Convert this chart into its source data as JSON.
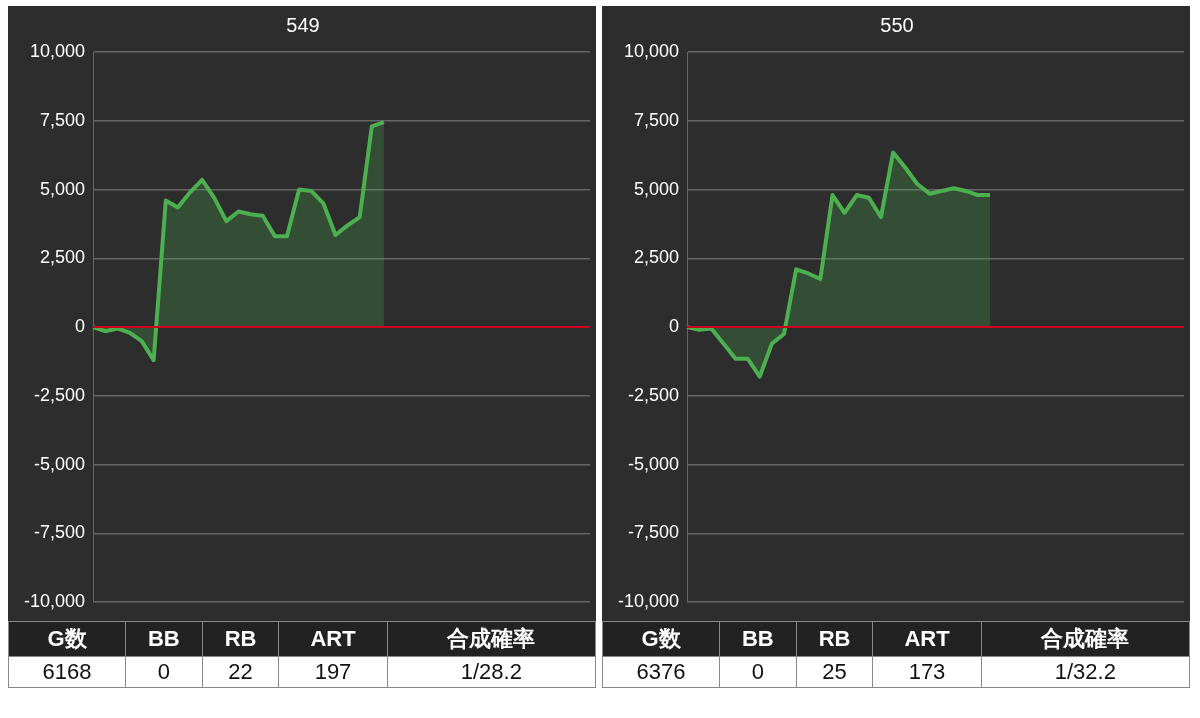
{
  "chart_data": [
    {
      "type": "area",
      "title": "549",
      "categories": [
        null,
        null,
        null,
        null,
        null,
        null,
        null,
        null,
        null,
        null,
        null,
        null,
        null,
        null,
        null,
        null,
        null,
        null,
        null,
        null,
        null,
        null,
        null,
        null,
        null,
        null,
        null,
        null,
        null,
        null,
        null,
        null,
        null,
        null,
        null,
        null,
        null,
        null,
        null,
        null,
        null,
        null
      ],
      "series": [
        {
          "color": "#4caf50",
          "values": [
            0,
            -150,
            -50,
            -200,
            -500,
            -1200,
            4600,
            4350,
            4900,
            5350,
            4700,
            3850,
            4200,
            4100,
            4050,
            3300,
            3300,
            5000,
            4950,
            4500,
            3350,
            3700,
            4000,
            7300,
            7450,
            null,
            null,
            null,
            null,
            null,
            null,
            null,
            null,
            null,
            null,
            null,
            null,
            null,
            null,
            null,
            null,
            null
          ]
        }
      ],
      "ylim": [
        -10000,
        10000
      ],
      "yticks": [
        {
          "value": -10000,
          "label": "-10,000"
        },
        {
          "value": -7500,
          "label": "-7,500"
        },
        {
          "value": -5000,
          "label": "-5,000"
        },
        {
          "value": -2500,
          "label": "-2,500"
        },
        0,
        {
          "value": 2500,
          "label": "2,500"
        },
        {
          "value": 5000,
          "label": "5,000"
        },
        {
          "value": 7500,
          "label": "7,500"
        },
        {
          "value": 10000,
          "label": "10,000"
        }
      ],
      "grid": "y",
      "legend": false,
      "tick_labels": "y",
      "ref_lines": [
        {
          "axis": "y",
          "value": 0,
          "color": "#d0021b"
        }
      ],
      "annotations": [
        "G数",
        "BB",
        "RB",
        "ART",
        "合成確率",
        "6168",
        "0",
        "22",
        "197",
        "1/28.2"
      ]
    },
    {
      "type": "area",
      "title": "550",
      "categories": [
        null,
        null,
        null,
        null,
        null,
        null,
        null,
        null,
        null,
        null,
        null,
        null,
        null,
        null,
        null,
        null,
        null,
        null,
        null,
        null,
        null,
        null,
        null,
        null,
        null,
        null,
        null,
        null,
        null,
        null,
        null,
        null,
        null,
        null,
        null,
        null,
        null,
        null,
        null,
        null,
        null,
        null
      ],
      "series": [
        {
          "color": "#4caf50",
          "values": [
            0,
            -100,
            -50,
            -600,
            -1150,
            -1150,
            -1800,
            -600,
            -250,
            2100,
            1950,
            1750,
            4800,
            4150,
            4800,
            4700,
            4000,
            6350,
            5800,
            5200,
            4850,
            4950,
            5050,
            4950,
            4800,
            4800,
            null,
            null,
            null,
            null,
            null,
            null,
            null,
            null,
            null,
            null,
            null,
            null,
            null,
            null,
            null,
            null
          ]
        }
      ],
      "ylim": [
        -10000,
        10000
      ],
      "yticks": [
        {
          "value": -10000,
          "label": "-10,000"
        },
        {
          "value": -7500,
          "label": "-7,500"
        },
        {
          "value": -5000,
          "label": "-5,000"
        },
        {
          "value": -2500,
          "label": "-2,500"
        },
        0,
        {
          "value": 2500,
          "label": "2,500"
        },
        {
          "value": 5000,
          "label": "5,000"
        },
        {
          "value": 7500,
          "label": "7,500"
        },
        {
          "value": 10000,
          "label": "10,000"
        }
      ],
      "grid": "y",
      "legend": false,
      "tick_labels": "y",
      "ref_lines": [
        {
          "axis": "y",
          "value": 0,
          "color": "#d0021b"
        }
      ],
      "annotations": [
        "G数",
        "BB",
        "RB",
        "ART",
        "合成確率",
        "6376",
        "0",
        "25",
        "173",
        "1/32.2"
      ]
    }
  ]
}
